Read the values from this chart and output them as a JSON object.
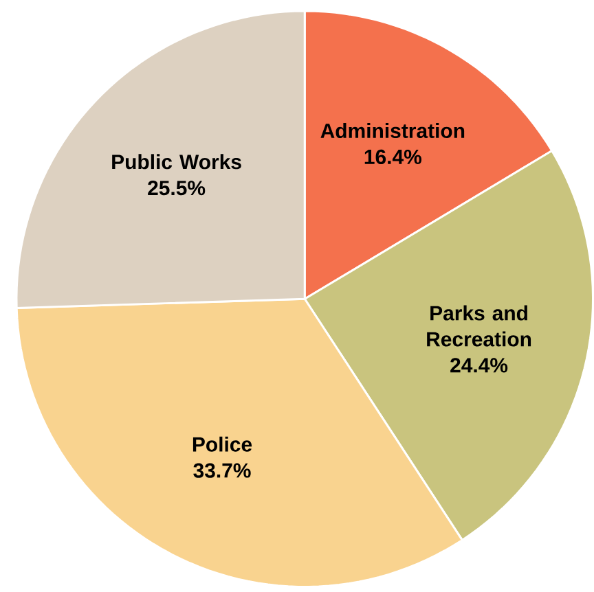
{
  "chart_data": {
    "type": "pie",
    "categories": [
      "Administration",
      "Parks and Recreation",
      "Police",
      "Public Works"
    ],
    "values": [
      16.4,
      24.4,
      33.7,
      25.5
    ],
    "value_labels": [
      "16.4%",
      "24.4%",
      "33.7%",
      "25.5%"
    ],
    "colors": [
      "#f4714d",
      "#c9c47e",
      "#f9d38f",
      "#ddd1c1"
    ]
  }
}
